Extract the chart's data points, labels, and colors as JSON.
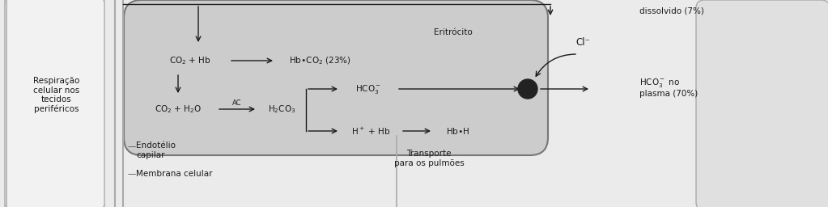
{
  "fig_bg": "#ebebeb",
  "bg_color": "#ebebeb",
  "left_panel_bg": "#e0e0e0",
  "left_panel_inner": "#f0f0f0",
  "capillary_line_color": "#aaaaaa",
  "ery_fill": "#c8c8c8",
  "ery_edge": "#777777",
  "right_arc_fill": "#e0e0e0",
  "right_arc_edge": "#aaaaaa",
  "text_color": "#1a1a1a",
  "arrow_color": "#1a1a1a",
  "dot_color": "#222222",
  "resp_text": "Respiração\ncelular nos\ntecidos\nperiféricos",
  "eritrocito_label": "Eritrócito",
  "dissolvido_text": "dissolvido (7%)",
  "cl_text": "Cl⁻",
  "hco3_plasma_text": "HCO₃⁻ no\nplasma (70%)",
  "endotelio_text": "Endotélio\ncapilar",
  "membrana_text": "Membrana celular",
  "transporte_text": "Transporte\npara os pulmões",
  "fontsize": 7.5,
  "fontsize_small": 6.0
}
